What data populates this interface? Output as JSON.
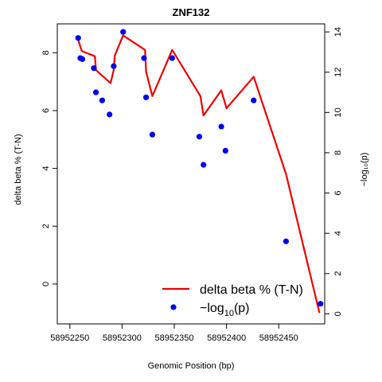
{
  "chart_data": {
    "type": "line",
    "title": "ZNF132",
    "xlabel": "Genomic Position (bp)",
    "ylabel": "delta beta % (T-N)",
    "y2label": "−log₁₀(p)",
    "xlim": [
      58952238,
      58952494
    ],
    "ylim": [
      -1.38,
      9.0
    ],
    "y2lim": [
      -0.5,
      14.4
    ],
    "x_ticks": [
      58952250,
      58952300,
      58952350,
      58952400,
      58952450
    ],
    "y_ticks": [
      0,
      2,
      4,
      6,
      8
    ],
    "y2_ticks": [
      0,
      2,
      4,
      6,
      8,
      10,
      12,
      14
    ],
    "grid": false,
    "legend_position": "bottom-right",
    "colors": {
      "line": "#ee0000",
      "points": "#0000ee"
    },
    "series": [
      {
        "name": "delta beta % (T-N)",
        "type": "line",
        "axis": "left",
        "x": [
          58952258,
          58952261,
          58952262,
          58952274,
          58952275,
          58952289,
          58952292,
          58952293,
          58952301,
          58952322,
          58952323,
          58952329,
          58952348,
          58952375,
          58952378,
          58952395,
          58952400,
          58952426,
          58952457,
          58952489
        ],
        "y": [
          8.45,
          8.1,
          8.05,
          7.88,
          7.4,
          6.95,
          7.4,
          7.9,
          8.6,
          8.1,
          7.35,
          6.5,
          8.1,
          6.5,
          5.83,
          6.7,
          6.08,
          7.17,
          3.8,
          -1.0
        ]
      },
      {
        "name": "−log₁₀(p)",
        "type": "scatter",
        "axis": "right",
        "x": [
          58952258,
          58952260,
          58952262,
          58952273,
          58952275,
          58952281,
          58952288,
          58952292,
          58952301,
          58952321,
          58952323,
          58952329,
          58952348,
          58952374,
          58952378,
          58952395,
          58952399,
          58952426,
          58952457,
          58952490
        ],
        "y": [
          13.7,
          12.7,
          12.65,
          12.2,
          11.0,
          10.6,
          9.9,
          12.3,
          14.0,
          12.7,
          10.75,
          8.9,
          12.7,
          8.8,
          7.4,
          9.3,
          8.1,
          10.6,
          3.6,
          0.5
        ]
      }
    ],
    "legend": [
      {
        "label": "delta beta % (T-N)",
        "kind": "line"
      },
      {
        "label_prefix": "−log",
        "label_sub": "10",
        "label_suffix": "(p)",
        "kind": "point"
      }
    ]
  }
}
